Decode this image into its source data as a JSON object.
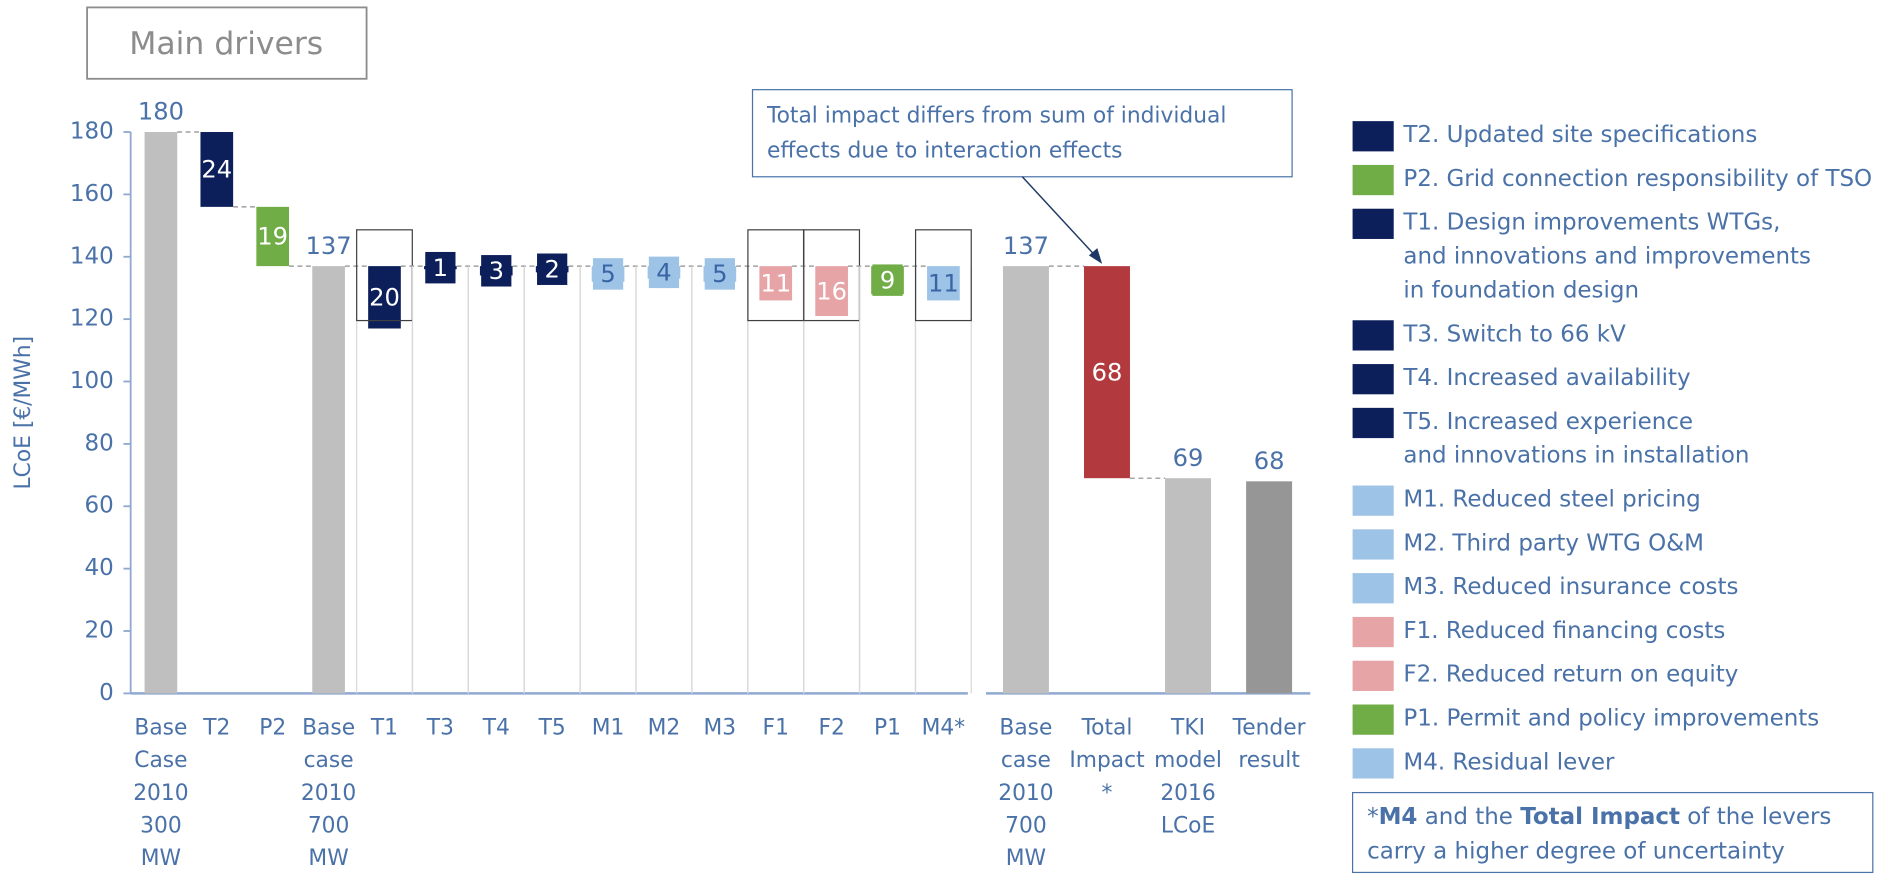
{
  "chart_data": {
    "type": "waterfall",
    "title": "Main drivers",
    "y_label": "LCoE [€/MWh]",
    "categories": [
      [
        "Base",
        "Case",
        "2010",
        "300",
        "MW"
      ],
      [
        "T2"
      ],
      [
        "P2"
      ],
      [
        "Base",
        "case",
        "2010",
        "700",
        "MW"
      ],
      [
        "T1"
      ],
      [
        "T3"
      ],
      [
        "T4"
      ],
      [
        "T5"
      ],
      [
        "M1"
      ],
      [
        "M2"
      ],
      [
        "M3"
      ],
      [
        "F1"
      ],
      [
        "F2"
      ],
      [
        "P1"
      ],
      [
        "M4*"
      ],
      [
        "Base",
        "case",
        "2010",
        "700",
        "MW"
      ],
      [
        "Total",
        "Impact",
        "*"
      ],
      [
        "TKI",
        "model",
        "2016",
        "LCoE"
      ],
      [
        "Tender",
        "result"
      ]
    ],
    "values": [
      180,
      24,
      19,
      137,
      20,
      1,
      3,
      2,
      5,
      4,
      5,
      11,
      16,
      9,
      11,
      137,
      68,
      69,
      68
    ],
    "measure": [
      "total",
      "decrease",
      "decrease",
      "total",
      "lever",
      "lever",
      "lever",
      "lever",
      "lever",
      "lever",
      "lever",
      "lever",
      "lever",
      "lever",
      "lever",
      "total",
      "decrease",
      "total",
      "total"
    ],
    "colors": [
      "#bfbfbf",
      "#0c1f5b",
      "#70ad47",
      "#bfbfbf",
      "#0c1f5b",
      "#0c1f5b",
      "#0c1f5b",
      "#0c1f5b",
      "#9dc3e6",
      "#9dc3e6",
      "#9dc3e6",
      "#e6a4a7",
      "#e6a4a7",
      "#70ad47",
      "#9dc3e6",
      "#bfbfbf",
      "#b23a3e",
      "#bfbfbf",
      "#969696"
    ],
    "panel": [
      1,
      1,
      1,
      1,
      1,
      1,
      1,
      1,
      1,
      1,
      1,
      1,
      1,
      1,
      1,
      2,
      2,
      2,
      2
    ],
    "highlight": [
      false,
      false,
      false,
      false,
      true,
      false,
      false,
      false,
      false,
      false,
      false,
      true,
      true,
      false,
      true,
      false,
      false,
      false,
      false
    ],
    "ylim": [
      0,
      180
    ],
    "yticks": [
      0,
      20,
      40,
      60,
      80,
      100,
      120,
      140,
      160,
      180
    ],
    "annotation": [
      "Total impact differs from sum of individual",
      "effects due to interaction effects"
    ],
    "legend": [
      {
        "name": [
          "T2. Updated site specifications"
        ],
        "color": "#0c1f5b"
      },
      {
        "name": [
          "P2. Grid connection responsibility of TSO"
        ],
        "color": "#70ad47"
      },
      {
        "name": [
          "T1. Design improvements WTGs,",
          "and innovations and improvements",
          "in foundation design"
        ],
        "color": "#0c1f5b"
      },
      {
        "name": [
          "T3. Switch to 66 kV"
        ],
        "color": "#0c1f5b"
      },
      {
        "name": [
          "T4. Increased availability"
        ],
        "color": "#0c1f5b"
      },
      {
        "name": [
          "T5. Increased experience",
          "and innovations in installation"
        ],
        "color": "#0c1f5b"
      },
      {
        "name": [
          "M1. Reduced steel pricing"
        ],
        "color": "#9dc3e6"
      },
      {
        "name": [
          "M2. Third party WTG O&M"
        ],
        "color": "#9dc3e6"
      },
      {
        "name": [
          "M3. Reduced insurance costs"
        ],
        "color": "#9dc3e6"
      },
      {
        "name": [
          "F1. Reduced financing costs"
        ],
        "color": "#e6a4a7"
      },
      {
        "name": [
          "F2. Reduced return on equity"
        ],
        "color": "#e6a4a7"
      },
      {
        "name": [
          "P1. Permit and policy improvements"
        ],
        "color": "#70ad47"
      },
      {
        "name": [
          "M4. Residual lever"
        ],
        "color": "#9dc3e6"
      }
    ],
    "note": [
      "*",
      "M4",
      " and the ",
      "Total Impact",
      " of the levers",
      "carry a higher degree of uncertainty"
    ]
  }
}
